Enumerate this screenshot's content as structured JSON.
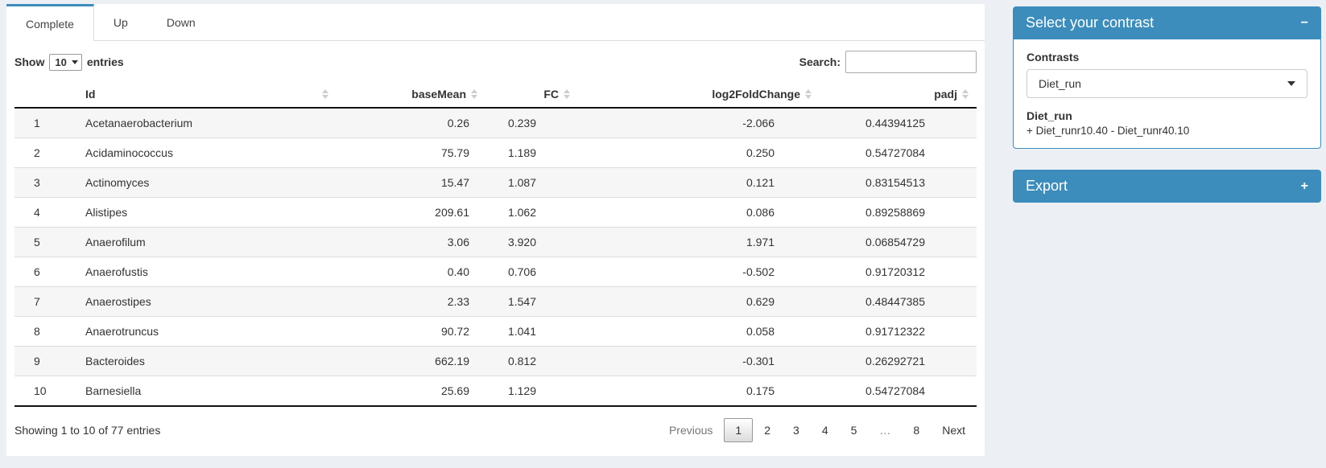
{
  "tabs": [
    {
      "label": "Complete",
      "active": true
    },
    {
      "label": "Up",
      "active": false
    },
    {
      "label": "Down",
      "active": false
    }
  ],
  "controls": {
    "show_label": "Show",
    "page_length": "10",
    "entries_label": "entries",
    "search_label": "Search:",
    "search_value": ""
  },
  "table": {
    "columns": [
      "",
      "Id",
      "baseMean",
      "FC",
      "log2FoldChange",
      "padj"
    ],
    "rows": [
      [
        "1",
        "Acetanaerobacterium",
        "0.26",
        "0.239",
        "-2.066",
        "0.44394125"
      ],
      [
        "2",
        "Acidaminococcus",
        "75.79",
        "1.189",
        "0.250",
        "0.54727084"
      ],
      [
        "3",
        "Actinomyces",
        "15.47",
        "1.087",
        "0.121",
        "0.83154513"
      ],
      [
        "4",
        "Alistipes",
        "209.61",
        "1.062",
        "0.086",
        "0.89258869"
      ],
      [
        "5",
        "Anaerofilum",
        "3.06",
        "3.920",
        "1.971",
        "0.06854729"
      ],
      [
        "6",
        "Anaerofustis",
        "0.40",
        "0.706",
        "-0.502",
        "0.91720312"
      ],
      [
        "7",
        "Anaerostipes",
        "2.33",
        "1.547",
        "0.629",
        "0.48447385"
      ],
      [
        "8",
        "Anaerotruncus",
        "90.72",
        "1.041",
        "0.058",
        "0.91712322"
      ],
      [
        "9",
        "Bacteroides",
        "662.19",
        "0.812",
        "-0.301",
        "0.26292721"
      ],
      [
        "10",
        "Barnesiella",
        "25.69",
        "1.129",
        "0.175",
        "0.54727084"
      ]
    ],
    "info": "Showing 1 to 10 of 77 entries",
    "pagination": {
      "previous": "Previous",
      "pages": [
        "1",
        "2",
        "3",
        "4",
        "5",
        "…",
        "8"
      ],
      "current": "1",
      "next": "Next"
    }
  },
  "contrast_panel": {
    "title": "Select your contrast",
    "collapse_icon": "−",
    "contrasts_label": "Contrasts",
    "selected_contrast": "Diet_run",
    "contrast_name": "Diet_run",
    "contrast_formula": "+ Diet_runr10.40 - Diet_runr40.10"
  },
  "export_panel": {
    "title": "Export",
    "expand_icon": "+"
  },
  "colors": {
    "accent": "#3c8dbc",
    "page_bg": "#ecf0f5",
    "stripe": "#f6f6f6"
  }
}
